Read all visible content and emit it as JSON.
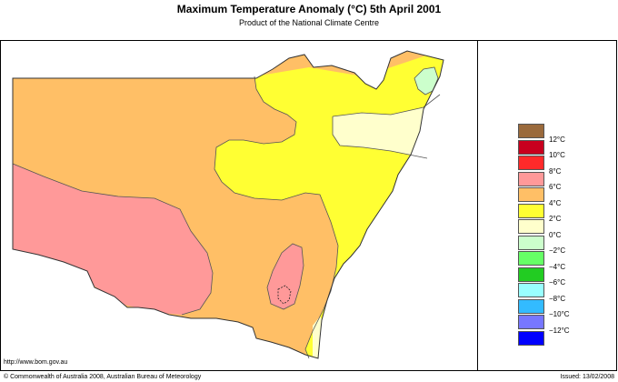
{
  "header": {
    "title": "Maximum Temperature Anomaly (°C)  5th April 2001",
    "subtitle": "Product of the National Climate Centre"
  },
  "footer": {
    "url": "http://www.bom.gov.au",
    "copyright": "© Commonwealth of Australia 2008, Australian Bureau of Meteorology",
    "issued": "Issued: 13/02/2008"
  },
  "legend": {
    "colors": [
      "#9a6a3c",
      "#c8001e",
      "#ff2a2a",
      "#ff9999",
      "#ffbf66",
      "#ffff33",
      "#ffffcc",
      "#ccffcc",
      "#66ff66",
      "#22cc22",
      "#99ffff",
      "#33bbff",
      "#7777ff",
      "#0000ff"
    ],
    "labels": [
      "12°C",
      "10°C",
      "8°C",
      "6°C",
      "4°C",
      "2°C",
      "0°C",
      "−2°C",
      "−4°C",
      "−6°C",
      "−8°C",
      "−10°C",
      "−12°C"
    ]
  },
  "map_colors": {
    "band_6_8": "#ff9999",
    "band_4_6": "#ffbf66",
    "band_2_4": "#ffff33",
    "band_0_2": "#ffffcc",
    "band_m2_0": "#ccffcc"
  }
}
